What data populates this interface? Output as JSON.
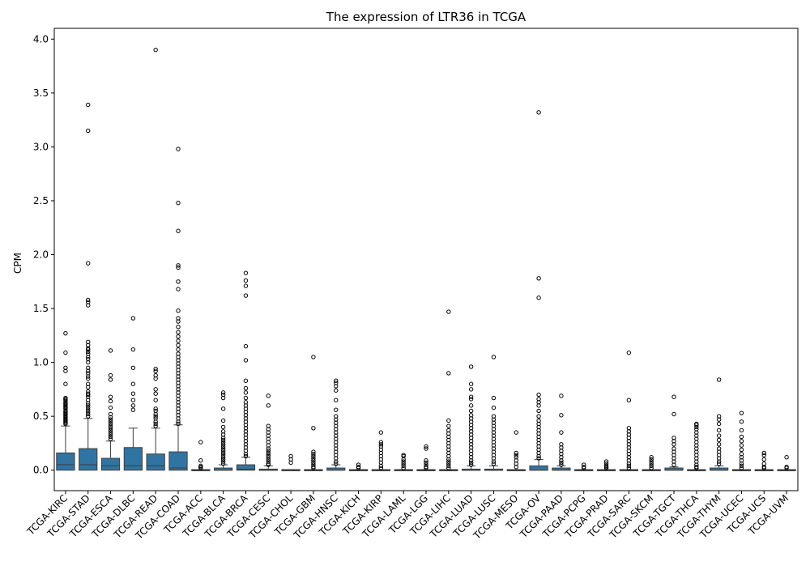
{
  "chart_data": {
    "type": "box",
    "title": "The expression of LTR36 in TCGA",
    "xlabel": "",
    "ylabel": "CPM",
    "ylim": [
      -0.19,
      4.1
    ],
    "yticks": [
      0.0,
      0.5,
      1.0,
      1.5,
      2.0,
      2.5,
      3.0,
      3.5,
      4.0
    ],
    "ytick_labels": [
      "0.0",
      "0.5",
      "1.0",
      "1.5",
      "2.0",
      "2.5",
      "3.0",
      "3.5",
      "4.0"
    ],
    "grid": false,
    "legend": "none",
    "box_color": "#3274a1",
    "categories": [
      "TCGA-KIRC",
      "TCGA-STAD",
      "TCGA-ESCA",
      "TCGA-DLBC",
      "TCGA-READ",
      "TCGA-COAD",
      "TCGA-ACC",
      "TCGA-BLCA",
      "TCGA-BRCA",
      "TCGA-CESC",
      "TCGA-CHOL",
      "TCGA-GBM",
      "TCGA-HNSC",
      "TCGA-KICH",
      "TCGA-KIRP",
      "TCGA-LAML",
      "TCGA-LGG",
      "TCGA-LIHC",
      "TCGA-LUAD",
      "TCGA-LUSC",
      "TCGA-MESO",
      "TCGA-OV",
      "TCGA-PAAD",
      "TCGA-PCPG",
      "TCGA-PRAD",
      "TCGA-SARC",
      "TCGA-SKCM",
      "TCGA-TGCT",
      "TCGA-THCA",
      "TCGA-THYM",
      "TCGA-UCEC",
      "TCGA-UCS",
      "TCGA-UVM"
    ],
    "boxes": [
      {
        "whisker_low": 0,
        "q1": 0,
        "median": 0.05,
        "q3": 0.16,
        "whisker_high": 0.41,
        "outliers": [
          1.27,
          1.09,
          0.95,
          0.92,
          0.8,
          0.67,
          0.66,
          0.65,
          0.63,
          0.62,
          0.61,
          0.6,
          0.59,
          0.58,
          0.57,
          0.55,
          0.54,
          0.53,
          0.52,
          0.51,
          0.5,
          0.49,
          0.48,
          0.47,
          0.46,
          0.45,
          0.44,
          0.43
        ]
      },
      {
        "whisker_low": 0,
        "q1": 0,
        "median": 0.05,
        "q3": 0.2,
        "whisker_high": 0.48,
        "outliers": [
          3.39,
          3.15,
          1.92,
          1.58,
          1.56,
          1.53,
          1.19,
          1.16,
          1.13,
          1.12,
          1.1,
          1.08,
          1.05,
          1.03,
          1.0,
          0.95,
          0.92,
          0.9,
          0.87,
          0.85,
          0.8,
          0.77,
          0.73,
          0.71,
          0.7,
          0.68,
          0.65,
          0.62,
          0.6,
          0.58,
          0.56,
          0.54,
          0.52,
          0.5
        ]
      },
      {
        "whisker_low": 0,
        "q1": 0,
        "median": 0.04,
        "q3": 0.11,
        "whisker_high": 0.27,
        "outliers": [
          1.11,
          0.88,
          0.84,
          0.68,
          0.64,
          0.58,
          0.52,
          0.49,
          0.47,
          0.45,
          0.43,
          0.41,
          0.39,
          0.37,
          0.35,
          0.33,
          0.31,
          0.29
        ]
      },
      {
        "whisker_low": 0,
        "q1": 0,
        "median": 0.04,
        "q3": 0.21,
        "whisker_high": 0.39,
        "outliers": [
          1.41,
          1.12,
          0.95,
          0.8,
          0.71,
          0.65,
          0.6,
          0.56
        ]
      },
      {
        "whisker_low": 0,
        "q1": 0,
        "median": 0.04,
        "q3": 0.15,
        "whisker_high": 0.39,
        "outliers": [
          3.9,
          0.94,
          0.92,
          0.88,
          0.85,
          0.75,
          0.71,
          0.65,
          0.57,
          0.55,
          0.52,
          0.5,
          0.48,
          0.45,
          0.43,
          0.41
        ]
      },
      {
        "whisker_low": 0,
        "q1": 0,
        "median": 0.02,
        "q3": 0.17,
        "whisker_high": 0.42,
        "outliers": [
          2.98,
          2.48,
          2.22,
          1.9,
          1.88,
          1.75,
          1.68,
          1.48,
          1.41,
          1.38,
          1.33,
          1.28,
          1.24,
          1.2,
          1.16,
          1.12,
          1.08,
          1.05,
          1.02,
          0.99,
          0.96,
          0.93,
          0.9,
          0.87,
          0.84,
          0.81,
          0.78,
          0.75,
          0.72,
          0.69,
          0.66,
          0.63,
          0.6,
          0.57,
          0.54,
          0.51,
          0.48,
          0.45,
          0.43
        ]
      },
      {
        "whisker_low": 0,
        "q1": 0,
        "median": 0,
        "q3": 0,
        "whisker_high": 0,
        "outliers": [
          0.26,
          0.09,
          0.04,
          0.03,
          0.02
        ]
      },
      {
        "whisker_low": 0,
        "q1": 0,
        "median": 0,
        "q3": 0.02,
        "whisker_high": 0.05,
        "outliers": [
          0.72,
          0.7,
          0.67,
          0.57,
          0.46,
          0.4,
          0.36,
          0.33,
          0.3,
          0.28,
          0.26,
          0.24,
          0.22,
          0.2,
          0.18,
          0.16,
          0.14,
          0.12,
          0.1,
          0.08,
          0.06
        ]
      },
      {
        "whisker_low": 0,
        "q1": 0,
        "median": 0.01,
        "q3": 0.05,
        "whisker_high": 0.12,
        "outliers": [
          1.83,
          1.76,
          1.71,
          1.62,
          1.15,
          1.02,
          0.83,
          0.76,
          0.72,
          0.67,
          0.63,
          0.6,
          0.57,
          0.54,
          0.51,
          0.48,
          0.45,
          0.42,
          0.39,
          0.36,
          0.33,
          0.3,
          0.27,
          0.24,
          0.21,
          0.18,
          0.15,
          0.13
        ]
      },
      {
        "whisker_low": 0,
        "q1": 0,
        "median": 0,
        "q3": 0.01,
        "whisker_high": 0.04,
        "outliers": [
          0.69,
          0.6,
          0.41,
          0.38,
          0.35,
          0.32,
          0.29,
          0.26,
          0.23,
          0.2,
          0.18,
          0.16,
          0.14,
          0.12,
          0.1,
          0.08,
          0.06,
          0.05
        ]
      },
      {
        "whisker_low": 0,
        "q1": 0,
        "median": 0,
        "q3": 0,
        "whisker_high": 0,
        "outliers": [
          0.13,
          0.1,
          0.07
        ]
      },
      {
        "whisker_low": 0,
        "q1": 0,
        "median": 0,
        "q3": 0,
        "whisker_high": 0,
        "outliers": [
          1.05,
          0.39,
          0.17,
          0.15,
          0.13,
          0.11,
          0.09,
          0.07,
          0.05,
          0.03,
          0.02
        ]
      },
      {
        "whisker_low": 0,
        "q1": 0,
        "median": 0,
        "q3": 0.02,
        "whisker_high": 0.05,
        "outliers": [
          0.83,
          0.81,
          0.78,
          0.74,
          0.65,
          0.56,
          0.5,
          0.47,
          0.44,
          0.41,
          0.38,
          0.35,
          0.32,
          0.29,
          0.26,
          0.23,
          0.2,
          0.17,
          0.14,
          0.11,
          0.08,
          0.06
        ]
      },
      {
        "whisker_low": 0,
        "q1": 0,
        "median": 0,
        "q3": 0,
        "whisker_high": 0,
        "outliers": [
          0.05,
          0.03,
          0.02
        ]
      },
      {
        "whisker_low": 0,
        "q1": 0,
        "median": 0,
        "q3": 0,
        "whisker_high": 0,
        "outliers": [
          0.35,
          0.26,
          0.24,
          0.22,
          0.19,
          0.16,
          0.13,
          0.1,
          0.07,
          0.04,
          0.02
        ]
      },
      {
        "whisker_low": 0,
        "q1": 0,
        "median": 0,
        "q3": 0,
        "whisker_high": 0,
        "outliers": [
          0.14,
          0.13,
          0.1,
          0.08,
          0.06,
          0.04,
          0.02
        ]
      },
      {
        "whisker_low": 0,
        "q1": 0,
        "median": 0,
        "q3": 0,
        "whisker_high": 0,
        "outliers": [
          0.22,
          0.2,
          0.09,
          0.07,
          0.05,
          0.03,
          0.02
        ]
      },
      {
        "whisker_low": 0,
        "q1": 0,
        "median": 0,
        "q3": 0,
        "whisker_high": 0,
        "outliers": [
          1.47,
          0.9,
          0.46,
          0.41,
          0.37,
          0.34,
          0.31,
          0.28,
          0.25,
          0.22,
          0.19,
          0.16,
          0.13,
          0.1,
          0.08,
          0.06,
          0.04,
          0.02
        ]
      },
      {
        "whisker_low": 0,
        "q1": 0,
        "median": 0,
        "q3": 0.01,
        "whisker_high": 0.04,
        "outliers": [
          0.96,
          0.8,
          0.75,
          0.68,
          0.66,
          0.6,
          0.55,
          0.51,
          0.48,
          0.45,
          0.42,
          0.39,
          0.36,
          0.33,
          0.3,
          0.27,
          0.24,
          0.21,
          0.18,
          0.15,
          0.12,
          0.09,
          0.07,
          0.05
        ]
      },
      {
        "whisker_low": 0,
        "q1": 0,
        "median": 0,
        "q3": 0.01,
        "whisker_high": 0.04,
        "outliers": [
          1.05,
          0.67,
          0.58,
          0.5,
          0.47,
          0.44,
          0.41,
          0.38,
          0.35,
          0.32,
          0.29,
          0.26,
          0.23,
          0.2,
          0.17,
          0.14,
          0.11,
          0.08,
          0.06
        ]
      },
      {
        "whisker_low": 0,
        "q1": 0,
        "median": 0,
        "q3": 0,
        "whisker_high": 0,
        "outliers": [
          0.35,
          0.16,
          0.14,
          0.12,
          0.09,
          0.06,
          0.03
        ]
      },
      {
        "whisker_low": 0,
        "q1": 0,
        "median": 0,
        "q3": 0.04,
        "whisker_high": 0.1,
        "outliers": [
          3.32,
          1.78,
          1.6,
          0.7,
          0.66,
          0.63,
          0.6,
          0.55,
          0.5,
          0.46,
          0.43,
          0.4,
          0.37,
          0.34,
          0.31,
          0.28,
          0.25,
          0.22,
          0.19,
          0.16,
          0.13,
          0.11
        ]
      },
      {
        "whisker_low": 0,
        "q1": 0,
        "median": 0,
        "q3": 0.02,
        "whisker_high": 0.04,
        "outliers": [
          0.69,
          0.51,
          0.35,
          0.24,
          0.21,
          0.18,
          0.15,
          0.12,
          0.09,
          0.07,
          0.05
        ]
      },
      {
        "whisker_low": 0,
        "q1": 0,
        "median": 0,
        "q3": 0,
        "whisker_high": 0,
        "outliers": [
          0.05,
          0.03,
          0.02
        ]
      },
      {
        "whisker_low": 0,
        "q1": 0,
        "median": 0,
        "q3": 0,
        "whisker_high": 0,
        "outliers": [
          0.08,
          0.06,
          0.04,
          0.03,
          0.02
        ]
      },
      {
        "whisker_low": 0,
        "q1": 0,
        "median": 0,
        "q3": 0,
        "whisker_high": 0,
        "outliers": [
          1.09,
          0.65,
          0.39,
          0.36,
          0.33,
          0.3,
          0.27,
          0.24,
          0.21,
          0.18,
          0.15,
          0.12,
          0.09,
          0.06,
          0.04,
          0.02
        ]
      },
      {
        "whisker_low": 0,
        "q1": 0,
        "median": 0,
        "q3": 0,
        "whisker_high": 0,
        "outliers": [
          0.12,
          0.1,
          0.08,
          0.06,
          0.04,
          0.02
        ]
      },
      {
        "whisker_low": 0,
        "q1": 0,
        "median": 0,
        "q3": 0.02,
        "whisker_high": 0.03,
        "outliers": [
          0.68,
          0.52,
          0.3,
          0.27,
          0.24,
          0.2,
          0.17,
          0.14,
          0.11,
          0.08,
          0.05
        ]
      },
      {
        "whisker_low": 0,
        "q1": 0,
        "median": 0,
        "q3": 0,
        "whisker_high": 0,
        "outliers": [
          0.43,
          0.42,
          0.4,
          0.38,
          0.35,
          0.32,
          0.29,
          0.26,
          0.23,
          0.2,
          0.17,
          0.14,
          0.11,
          0.08,
          0.05,
          0.03,
          0.02
        ]
      },
      {
        "whisker_low": 0,
        "q1": 0,
        "median": 0,
        "q3": 0.02,
        "whisker_high": 0.04,
        "outliers": [
          0.84,
          0.5,
          0.47,
          0.43,
          0.37,
          0.32,
          0.28,
          0.24,
          0.2,
          0.17,
          0.14,
          0.11,
          0.08,
          0.06
        ]
      },
      {
        "whisker_low": 0,
        "q1": 0,
        "median": 0,
        "q3": 0,
        "whisker_high": 0,
        "outliers": [
          0.53,
          0.45,
          0.37,
          0.31,
          0.27,
          0.23,
          0.19,
          0.15,
          0.12,
          0.09,
          0.06,
          0.04,
          0.02
        ]
      },
      {
        "whisker_low": 0,
        "q1": 0,
        "median": 0,
        "q3": 0,
        "whisker_high": 0,
        "outliers": [
          0.16,
          0.14,
          0.1,
          0.06,
          0.03,
          0.02
        ]
      },
      {
        "whisker_low": 0,
        "q1": 0,
        "median": 0,
        "q3": 0,
        "whisker_high": 0,
        "outliers": [
          0.12,
          0.03,
          0.02
        ]
      }
    ]
  }
}
